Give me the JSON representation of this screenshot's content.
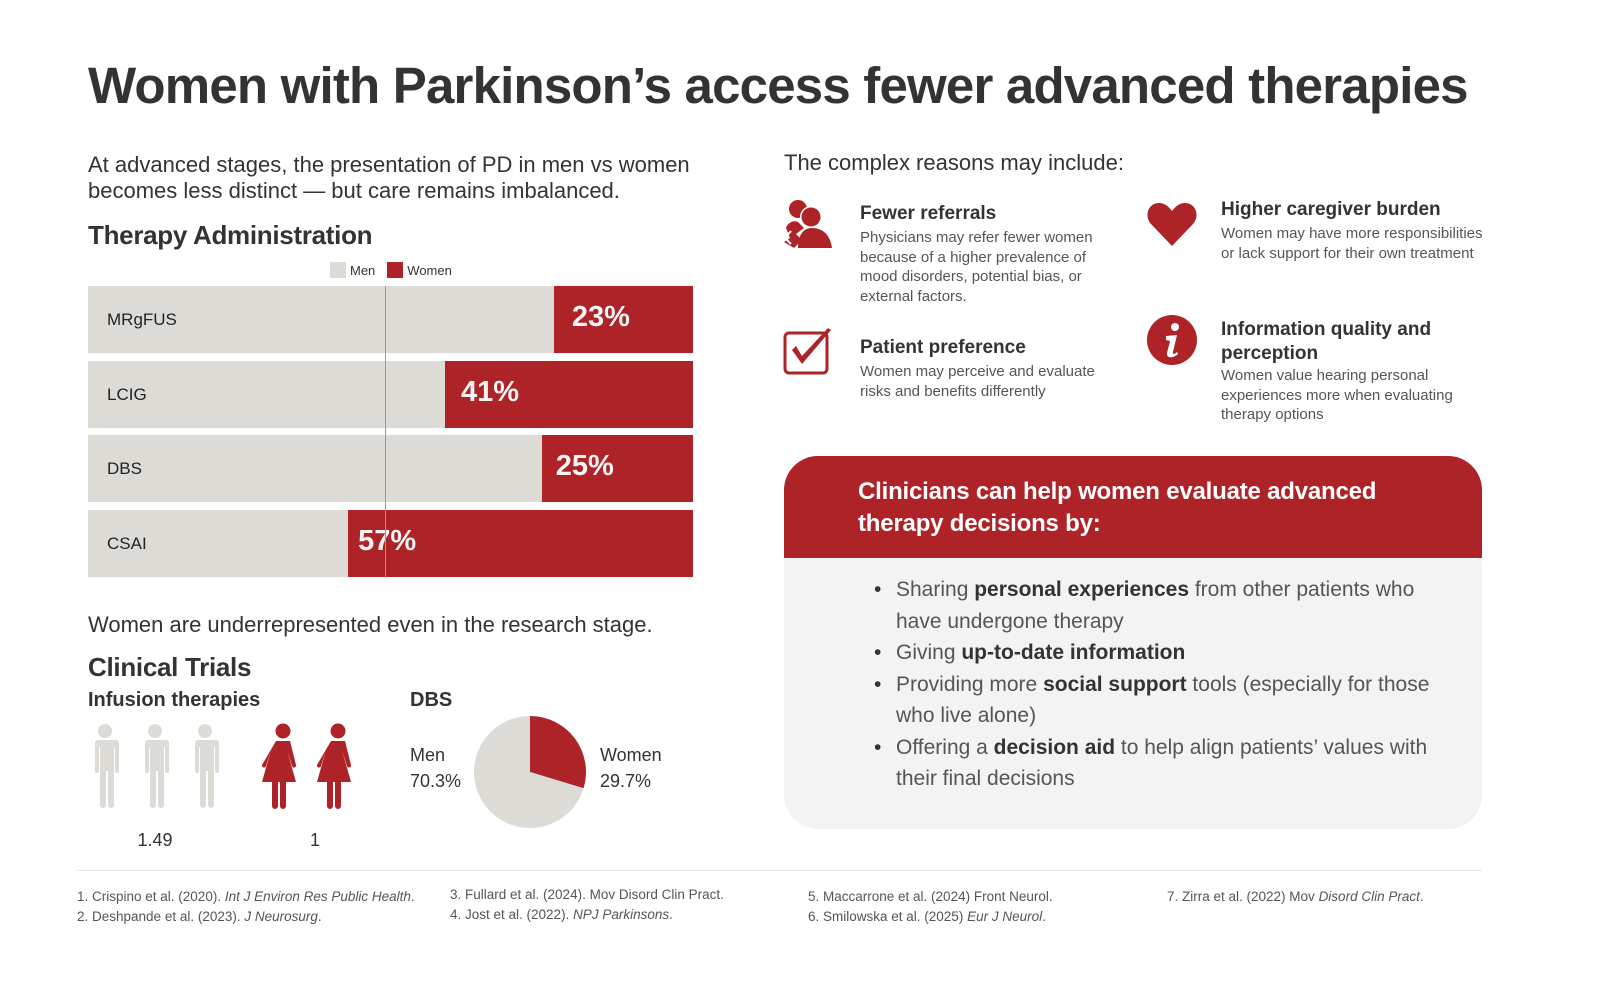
{
  "title": "Women with Parkinson’s access fewer advanced therapies",
  "intro": "At advanced stages, the presentation of PD in men vs women becomes less distinct — but care remains imbalanced.",
  "colors": {
    "accent": "#ae2328",
    "men": "#dcdbd6",
    "text": "#333333",
    "card_bg": "#f3f3f3"
  },
  "therapy_section": {
    "heading": "Therapy Administration",
    "legend": [
      {
        "label": "Men",
        "color": "#dcdbd6"
      },
      {
        "label": "Women",
        "color": "#ae2328"
      }
    ]
  },
  "research_text": "Women are underrepresented even in the research stage.",
  "clinical_section": {
    "heading": "Clinical Trials",
    "infusion": {
      "heading": "Infusion therapies",
      "men_ratio": "1.49",
      "women_ratio": "1",
      "men_icon_count": 3,
      "women_icon_count": 2
    },
    "dbs": {
      "heading": "DBS",
      "men_label": "Men",
      "men_value": "70.3%",
      "women_label": "Women",
      "women_value": "29.7%"
    }
  },
  "chart_data": [
    {
      "type": "bar",
      "title": "Therapy Administration",
      "stacked": true,
      "orientation": "horizontal",
      "categories": [
        "MRgFUS",
        "LCIG",
        "DBS",
        "CSAI"
      ],
      "series": [
        {
          "name": "Men",
          "values": [
            77,
            59,
            75,
            43
          ],
          "color": "#dcdbd6"
        },
        {
          "name": "Women",
          "values": [
            23,
            41,
            25,
            57
          ],
          "color": "#ae2328"
        }
      ],
      "data_labels": [
        "23%",
        "41%",
        "25%",
        "57%"
      ],
      "reference_line": 50,
      "xlim": [
        0,
        100
      ],
      "legend": "top-center"
    },
    {
      "type": "pie",
      "title": "DBS",
      "labels": [
        "Women",
        "Men"
      ],
      "values": [
        29.7,
        70.3
      ],
      "colors": [
        "#ae2328",
        "#dcdbd6"
      ]
    },
    {
      "type": "pictogram",
      "title": "Infusion therapies",
      "categories": [
        "Men",
        "Women"
      ],
      "values": [
        1.49,
        1
      ]
    }
  ],
  "reasons": {
    "heading": "The complex reasons may include:",
    "items": [
      {
        "icon": "people-referral-icon",
        "title": "Fewer referrals",
        "desc": "Physicians may refer fewer women because of a higher prevalence of mood disorders, potential bias, or external factors."
      },
      {
        "icon": "heart-icon",
        "title": "Higher caregiver burden",
        "desc": "Women may have more responsibilities or lack support for their own treatment"
      },
      {
        "icon": "checkbox-icon",
        "title": "Patient preference",
        "desc": "Women may perceive and evaluate risks and benefits differently"
      },
      {
        "icon": "info-icon",
        "title": "Information quality and perception",
        "desc": "Women value hearing personal experiences more when evaluating therapy options"
      }
    ]
  },
  "clinicians_card": {
    "title": "Clinicians can help women evaluate advanced therapy decisions by:",
    "items": [
      {
        "pre": "Sharing ",
        "bold": "personal experiences",
        "post": " from other patients who have undergone therapy"
      },
      {
        "pre": "Giving ",
        "bold": "up-to-date information",
        "post": ""
      },
      {
        "pre": "Providing more ",
        "bold": "social support",
        "post": " tools (especially for those who live alone)"
      },
      {
        "pre": "Offering a ",
        "bold": "decision aid",
        "post": " to help align patients’ values with their final decisions"
      }
    ]
  },
  "references": [
    {
      "plain": "1. Crispino et al. (2020). ",
      "italic": "Int J Environ Res Public Health",
      "tail": "."
    },
    {
      "plain": "2. Deshpande et al. (2023). ",
      "italic": "J Neurosurg",
      "tail": "."
    },
    {
      "plain": "3. Fullard et al. (2024). Mov Disord Clin Pract.",
      "italic": "",
      "tail": ""
    },
    {
      "plain": "4. Jost et al. (2022). ",
      "italic": "NPJ Parkinsons",
      "tail": "."
    },
    {
      "plain": "5. Maccarrone et al. (2024) Front Neurol.",
      "italic": "",
      "tail": ""
    },
    {
      "plain": "6. Smilowska et al. (2025) ",
      "italic": "Eur J Neurol",
      "tail": "."
    },
    {
      "plain": "7. Zirra et al. (2022) Mov ",
      "italic": "Disord Clin Pract",
      "tail": "."
    }
  ]
}
